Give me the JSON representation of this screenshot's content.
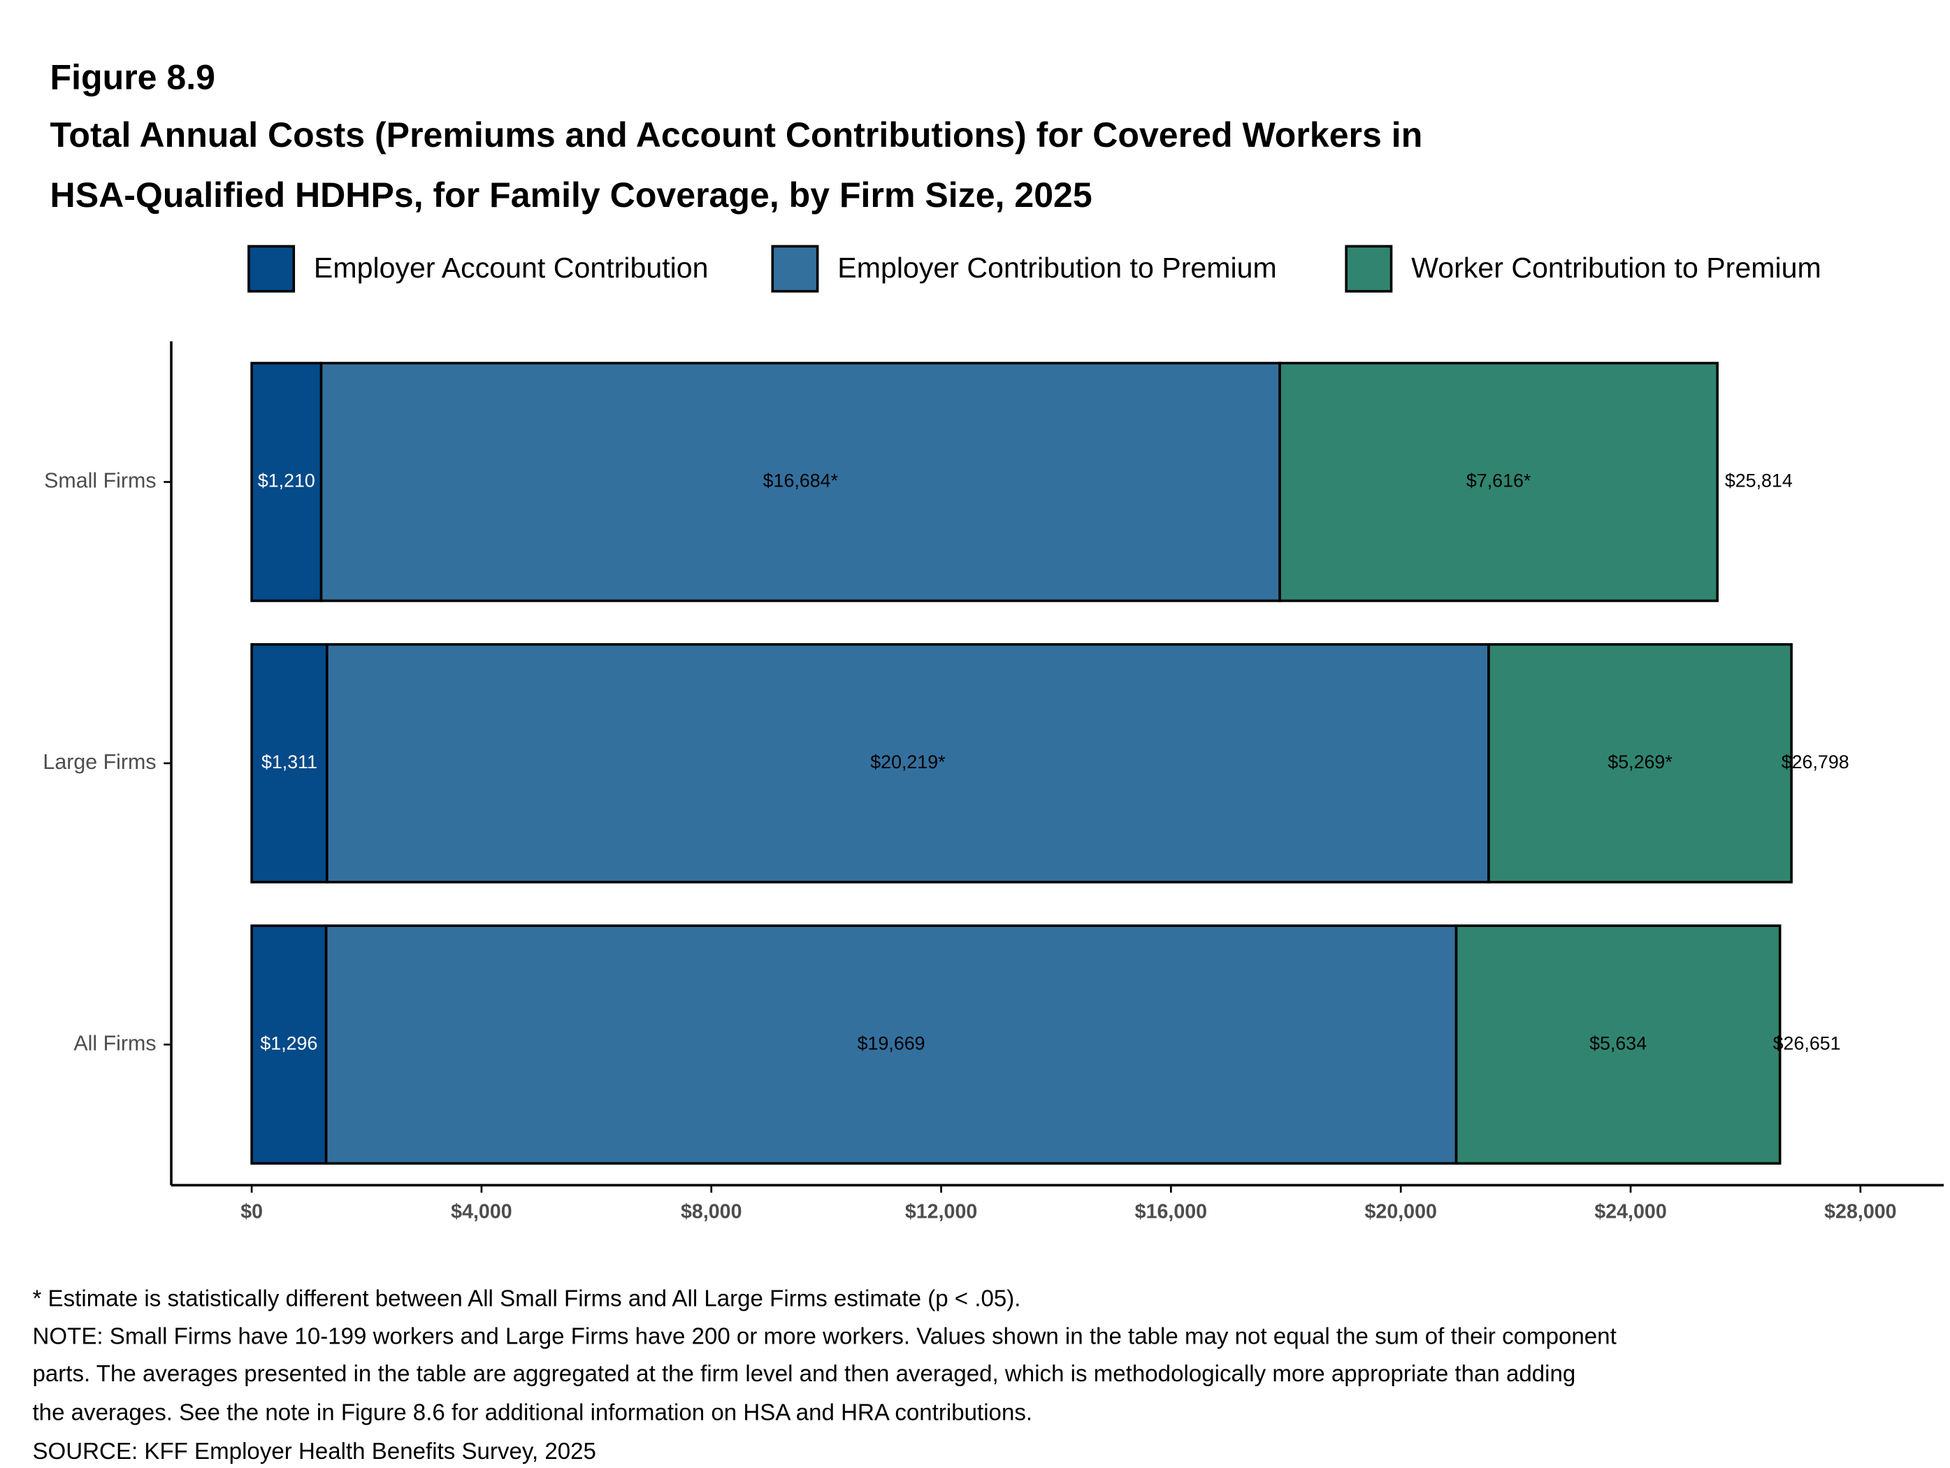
{
  "chart_data": {
    "type": "stacked-bar-horizontal",
    "figure_label": "Figure 8.9",
    "title": [
      "Total Annual Costs (Premiums and Account Contributions) for Covered Workers in",
      "HSA-Qualified HDHPs, for Family Coverage, by Firm Size, 2025"
    ],
    "categories": [
      "Small Firms",
      "Large Firms",
      "All Firms"
    ],
    "series": [
      {
        "name": "Employer Account Contribution",
        "color": "#054a89",
        "label_color": "#ffffff",
        "values": [
          1210,
          1311,
          1296
        ],
        "value_labels": [
          "$1,210",
          "$1,311",
          "$1,296"
        ]
      },
      {
        "name": "Employer Contribution to Premium",
        "color": "#34709e",
        "label_color": "#000000",
        "values": [
          16684,
          20219,
          19669
        ],
        "value_labels": [
          "$16,684*",
          "$20,219*",
          "$19,669"
        ]
      },
      {
        "name": "Worker Contribution to Premium",
        "color": "#318570",
        "label_color": "#000000",
        "values": [
          7616,
          5269,
          5634
        ],
        "value_labels": [
          "$7,616*",
          "$5,269*",
          "$5,634"
        ]
      }
    ],
    "totals": {
      "values": [
        25814,
        26798,
        26651
      ],
      "value_labels": [
        "$25,814",
        "$26,798",
        "$26,651"
      ]
    },
    "xlim": [
      -1400,
      29450
    ],
    "xticks": [
      {
        "value": 0,
        "label": "$0"
      },
      {
        "value": 4000,
        "label": "$4,000"
      },
      {
        "value": 8000,
        "label": "$8,000"
      },
      {
        "value": 12000,
        "label": "$12,000"
      },
      {
        "value": 16000,
        "label": "$16,000"
      },
      {
        "value": 20000,
        "label": "$20,000"
      },
      {
        "value": 24000,
        "label": "$24,000"
      },
      {
        "value": 28000,
        "label": "$28,000"
      }
    ],
    "legend": "top",
    "notes": [
      "* Estimate is statistically different between All Small Firms and All Large Firms estimate (p < .05).",
      "NOTE: Small Firms have 10-199 workers and Large Firms have 200 or more workers. Values shown in the table may not equal the sum of their component",
      "parts. The averages presented in the table are aggregated at the firm level and then averaged, which is methodologically more appropriate than adding",
      "the averages. See the note in Figure 8.6 for additional information on HSA and HRA contributions.",
      "SOURCE: KFF Employer Health Benefits Survey, 2025"
    ]
  }
}
